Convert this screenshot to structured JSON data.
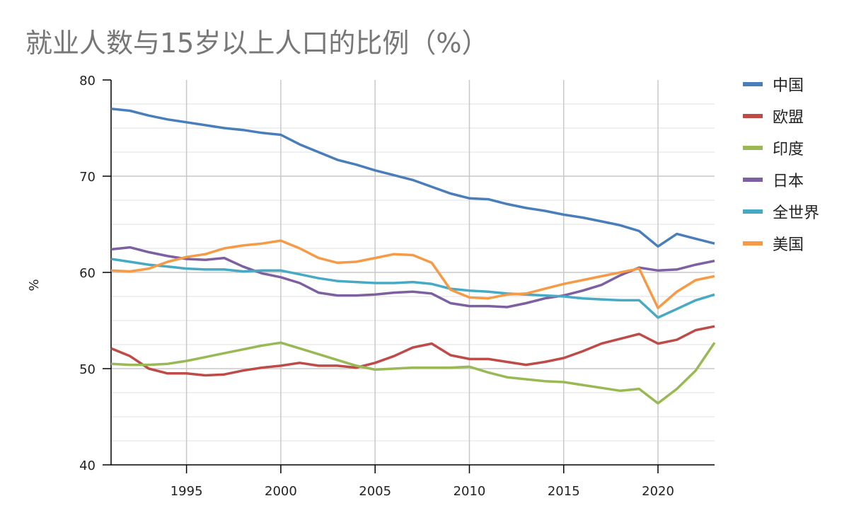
{
  "title": "就业人数与15岁以上人口的比例（%）",
  "chart_data": {
    "type": "line",
    "title": "就业人数与15岁以上人口的比例（%）",
    "xlabel": "",
    "ylabel": "%",
    "xlim": [
      1991,
      2023
    ],
    "ylim": [
      40,
      80
    ],
    "x_ticks": [
      1995,
      2000,
      2005,
      2010,
      2015,
      2020
    ],
    "y_ticks": [
      40,
      50,
      60,
      70,
      80
    ],
    "grid": true,
    "legend_position": "right",
    "x": [
      1991,
      1992,
      1993,
      1994,
      1995,
      1996,
      1997,
      1998,
      1999,
      2000,
      2001,
      2002,
      2003,
      2004,
      2005,
      2006,
      2007,
      2008,
      2009,
      2010,
      2011,
      2012,
      2013,
      2014,
      2015,
      2016,
      2017,
      2018,
      2019,
      2020,
      2021,
      2022,
      2023
    ],
    "series": [
      {
        "name": "中国",
        "color": "#4a7ebb",
        "values": [
          77.0,
          76.8,
          76.3,
          75.9,
          75.6,
          75.3,
          75.0,
          74.8,
          74.5,
          74.3,
          73.3,
          72.5,
          71.7,
          71.2,
          70.6,
          70.1,
          69.6,
          68.9,
          68.2,
          67.7,
          67.6,
          67.1,
          66.7,
          66.4,
          66.0,
          65.7,
          65.3,
          64.9,
          64.3,
          62.7,
          64.0,
          63.5,
          63.0
        ]
      },
      {
        "name": "欧盟",
        "color": "#be4b48",
        "values": [
          52.1,
          51.3,
          50.0,
          49.5,
          49.5,
          49.3,
          49.4,
          49.8,
          50.1,
          50.3,
          50.6,
          50.3,
          50.3,
          50.1,
          50.6,
          51.3,
          52.2,
          52.6,
          51.4,
          51.0,
          51.0,
          50.7,
          50.4,
          50.7,
          51.1,
          51.8,
          52.6,
          53.1,
          53.6,
          52.6,
          53.0,
          54.0,
          54.4
        ]
      },
      {
        "name": "印度",
        "color": "#98b954",
        "values": [
          50.5,
          50.4,
          50.4,
          50.5,
          50.8,
          51.2,
          51.6,
          52.0,
          52.4,
          52.7,
          52.1,
          51.5,
          50.9,
          50.3,
          49.9,
          50.0,
          50.1,
          50.1,
          50.1,
          50.2,
          49.6,
          49.1,
          48.9,
          48.7,
          48.6,
          48.3,
          48.0,
          47.7,
          47.9,
          46.4,
          47.9,
          49.8,
          52.7
        ]
      },
      {
        "name": "日本",
        "color": "#7d60a0",
        "values": [
          62.4,
          62.6,
          62.1,
          61.7,
          61.4,
          61.3,
          61.5,
          60.6,
          59.9,
          59.5,
          58.9,
          57.9,
          57.6,
          57.6,
          57.7,
          57.9,
          58.0,
          57.8,
          56.8,
          56.5,
          56.5,
          56.4,
          56.8,
          57.3,
          57.6,
          58.1,
          58.7,
          59.7,
          60.5,
          60.2,
          60.3,
          60.8,
          61.2
        ]
      },
      {
        "name": "全世界",
        "color": "#46aac5",
        "values": [
          61.4,
          61.1,
          60.8,
          60.6,
          60.4,
          60.3,
          60.3,
          60.1,
          60.2,
          60.2,
          59.8,
          59.4,
          59.1,
          59.0,
          58.9,
          58.9,
          59.0,
          58.8,
          58.3,
          58.1,
          58.0,
          57.8,
          57.7,
          57.6,
          57.5,
          57.3,
          57.2,
          57.1,
          57.1,
          55.3,
          56.2,
          57.1,
          57.7
        ]
      },
      {
        "name": "美国",
        "color": "#f69a45",
        "values": [
          60.2,
          60.1,
          60.4,
          61.1,
          61.6,
          61.9,
          62.5,
          62.8,
          63.0,
          63.3,
          62.5,
          61.5,
          61.0,
          61.1,
          61.5,
          61.9,
          61.8,
          61.0,
          58.2,
          57.4,
          57.3,
          57.7,
          57.8,
          58.3,
          58.8,
          59.2,
          59.6,
          60.0,
          60.4,
          56.3,
          58.0,
          59.2,
          59.6
        ]
      }
    ]
  }
}
